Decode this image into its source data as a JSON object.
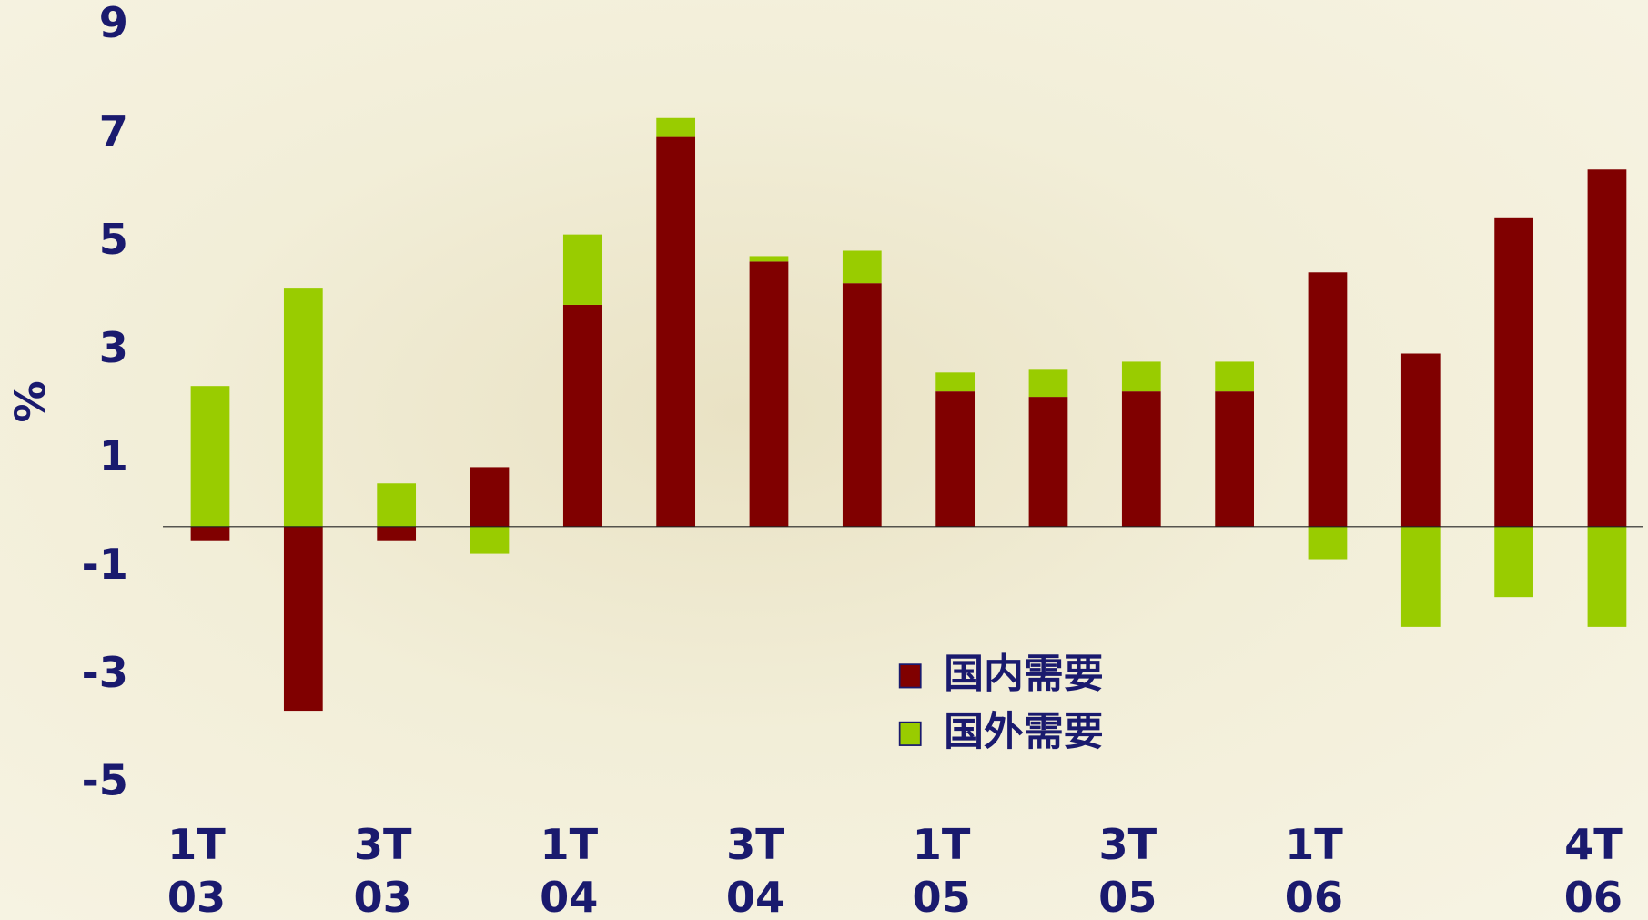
{
  "chart_data": {
    "type": "bar",
    "stacked": true,
    "y_label": "%",
    "categories": [
      "1T\n03",
      null,
      "3T\n03",
      null,
      "1T\n04",
      null,
      "3T\n04",
      null,
      "1T\n05",
      null,
      "3T\n05",
      null,
      "1T\n06",
      null,
      null,
      "4T\n06"
    ],
    "series": [
      {
        "name": "国内需要",
        "color": "#800000",
        "values": [
          -0.25,
          -3.4,
          -0.25,
          1.1,
          4.1,
          7.2,
          4.9,
          4.5,
          2.5,
          2.4,
          2.5,
          2.5,
          4.7,
          3.2,
          5.7,
          6.6
        ]
      },
      {
        "name": "国外需要",
        "color": "#99cc00",
        "values": [
          2.6,
          4.4,
          0.8,
          -0.5,
          1.3,
          0.35,
          0.1,
          0.6,
          0.35,
          0.5,
          0.55,
          0.55,
          -0.6,
          -1.85,
          -1.3,
          -1.85
        ]
      }
    ],
    "ylim": [
      -5,
      9
    ],
    "yticks": [
      9,
      7,
      5,
      3,
      1,
      -1,
      -3,
      -5
    ],
    "legend": "bottom-center"
  }
}
